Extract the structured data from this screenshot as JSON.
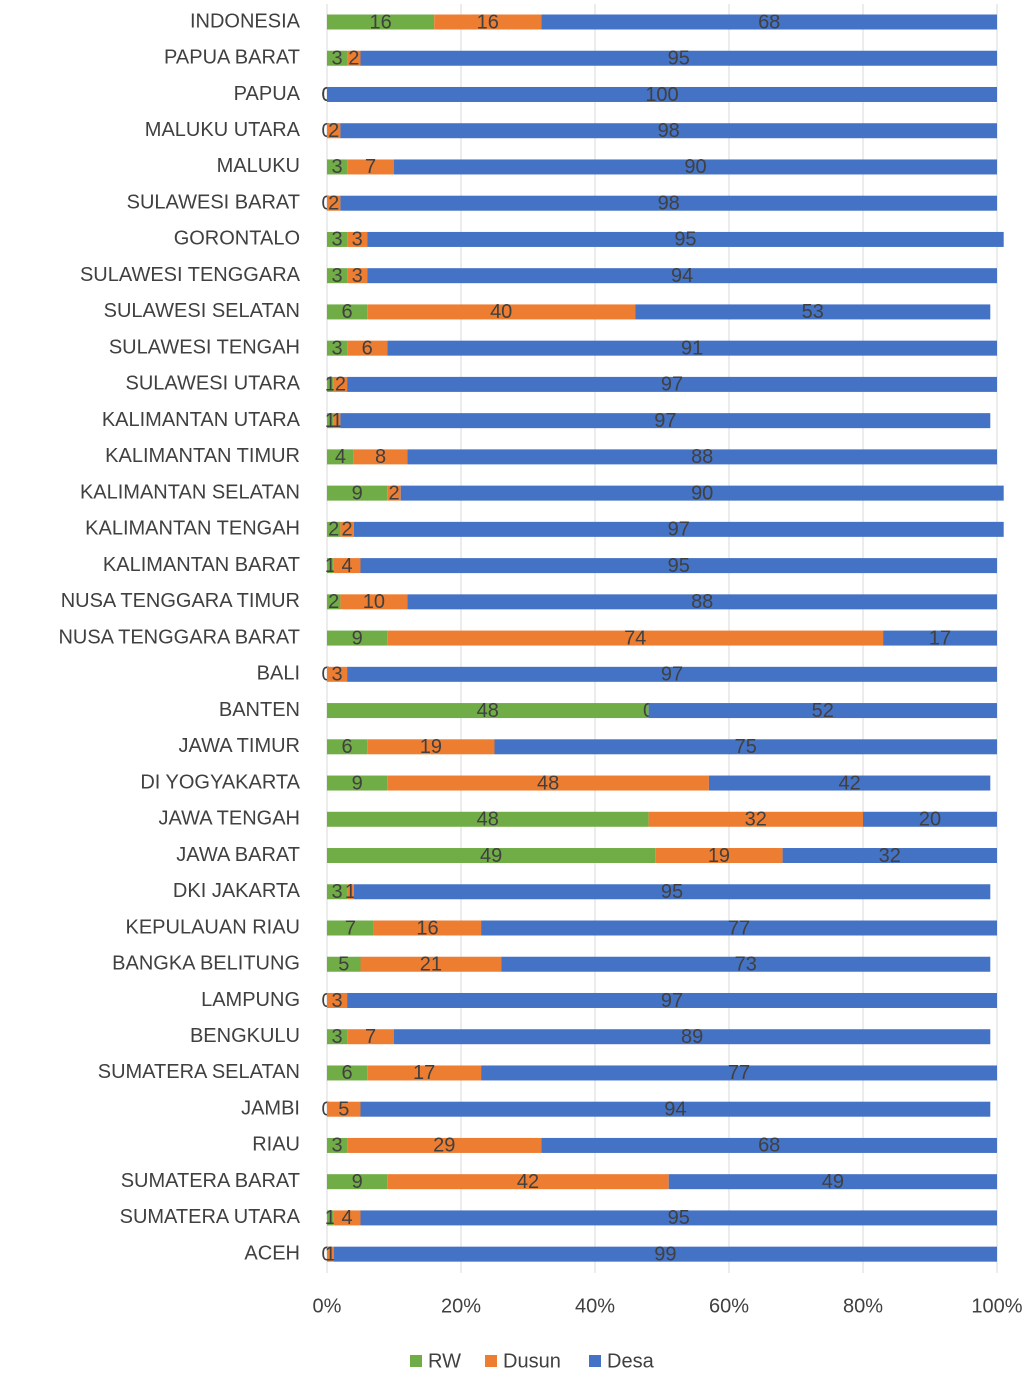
{
  "chart_data": {
    "type": "stacked_bar_horizontal",
    "categories": [
      "INDONESIA",
      "PAPUA BARAT",
      "PAPUA",
      "MALUKU UTARA",
      "MALUKU",
      "SULAWESI BARAT",
      "GORONTALO",
      "SULAWESI TENGGARA",
      "SULAWESI SELATAN",
      "SULAWESI TENGAH",
      "SULAWESI UTARA",
      "KALIMANTAN UTARA",
      "KALIMANTAN TIMUR",
      "KALIMANTAN SELATAN",
      "KALIMANTAN TENGAH",
      "KALIMANTAN BARAT",
      "NUSA TENGGARA TIMUR",
      "NUSA TENGGARA BARAT",
      "BALI",
      "BANTEN",
      "JAWA TIMUR",
      "DI YOGYAKARTA",
      "JAWA TENGAH",
      "JAWA BARAT",
      "DKI JAKARTA",
      "KEPULAUAN RIAU",
      "BANGKA BELITUNG",
      "LAMPUNG",
      "BENGKULU",
      "SUMATERA SELATAN",
      "JAMBI",
      "RIAU",
      "SUMATERA BARAT",
      "SUMATERA UTARA",
      "ACEH"
    ],
    "series": [
      {
        "name": "RW",
        "color": "#70ad47",
        "values": [
          16,
          3,
          0,
          0,
          3,
          0,
          3,
          3,
          6,
          3,
          1,
          1,
          4,
          9,
          2,
          1,
          2,
          9,
          0,
          48,
          6,
          9,
          48,
          49,
          3,
          7,
          5,
          0,
          3,
          6,
          0,
          3,
          9,
          1,
          0
        ]
      },
      {
        "name": "Dusun",
        "color": "#ed7d31",
        "values": [
          16,
          2,
          0,
          2,
          7,
          2,
          3,
          3,
          40,
          6,
          2,
          1,
          8,
          2,
          2,
          4,
          10,
          74,
          3,
          0,
          19,
          48,
          32,
          19,
          1,
          16,
          21,
          3,
          7,
          17,
          5,
          29,
          42,
          4,
          1
        ]
      },
      {
        "name": "Desa",
        "color": "#4472c4",
        "values": [
          68,
          95,
          100,
          98,
          90,
          98,
          95,
          94,
          53,
          91,
          97,
          97,
          88,
          90,
          97,
          95,
          88,
          17,
          97,
          52,
          75,
          42,
          20,
          32,
          95,
          77,
          73,
          97,
          89,
          77,
          94,
          68,
          49,
          95,
          99
        ]
      }
    ],
    "xlim": [
      0,
      100
    ],
    "xticks": [
      {
        "value": 0,
        "label": "0%"
      },
      {
        "value": 20,
        "label": "20%"
      },
      {
        "value": 40,
        "label": "40%"
      },
      {
        "value": 60,
        "label": "60%"
      },
      {
        "value": 80,
        "label": "80%"
      },
      {
        "value": 100,
        "label": "100%"
      }
    ],
    "grid": true,
    "legend": "bottom"
  }
}
